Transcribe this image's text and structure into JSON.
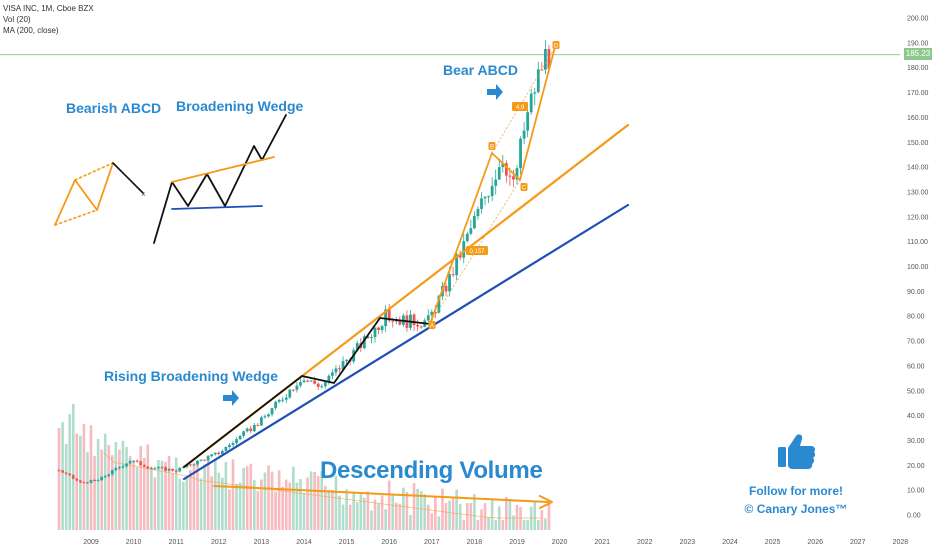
{
  "header": {
    "symbol": "VISA INC, 1M, Cboe BZX",
    "vol": "Vol (20)",
    "ma": "MA (200, close)"
  },
  "annotations": {
    "bearish_abcd": "Bearish ABCD",
    "broadening_wedge": "Broadening Wedge",
    "bear_abcd": "Bear ABCD",
    "rising_broadening_wedge": "Rising Broadening Wedge",
    "descending_volume": "Descending Volume",
    "follow_line1": "Follow for more!",
    "follow_line2": "© Canary Jones™"
  },
  "last_price_label": "185.23",
  "pattern_labels": [
    "A",
    "B",
    "C",
    "D",
    "0.157",
    "4.9"
  ],
  "colors": {
    "up": "#26a69a",
    "down": "#ef5350",
    "wedge_upper": "#f59a16",
    "wedge_lower": "#1f4fb5",
    "annotation": "#2a8ad0",
    "price_line": "#7ec87e"
  },
  "chart_data": {
    "type": "candlestick",
    "x_axis_years": [
      "2009",
      "2010",
      "2011",
      "2012",
      "2013",
      "2014",
      "2015",
      "2016",
      "2017",
      "2018",
      "2019",
      "2020",
      "2021",
      "2022",
      "2023",
      "2024",
      "2025",
      "2026",
      "2027",
      "2028"
    ],
    "y_ticks": [
      "200.00",
      "190.00",
      "180.00",
      "170.00",
      "160.00",
      "150.00",
      "140.00",
      "130.00",
      "120.00",
      "110.00",
      "100.00",
      "90.00",
      "80.00",
      "70.00",
      "60.00",
      "50.00",
      "40.00",
      "30.00",
      "20.00",
      "10.00",
      "0.00"
    ],
    "ylim": [
      0,
      200
    ],
    "scale": "log",
    "last_close": 185.23,
    "approx_close_path": [
      {
        "x": "2008-04",
        "y": 18
      },
      {
        "x": "2008-10",
        "y": 13
      },
      {
        "x": "2009-03",
        "y": 14
      },
      {
        "x": "2009-12",
        "y": 22
      },
      {
        "x": "2010-06",
        "y": 19
      },
      {
        "x": "2011-01",
        "y": 18
      },
      {
        "x": "2012-01",
        "y": 25
      },
      {
        "x": "2013-01",
        "y": 38
      },
      {
        "x": "2013-12",
        "y": 55
      },
      {
        "x": "2014-06",
        "y": 52
      },
      {
        "x": "2015-06",
        "y": 70
      },
      {
        "x": "2015-12",
        "y": 80
      },
      {
        "x": "2016-06",
        "y": 78
      },
      {
        "x": "2016-12",
        "y": 78
      },
      {
        "x": "2017-06",
        "y": 95
      },
      {
        "x": "2017-12",
        "y": 115
      },
      {
        "x": "2018-06",
        "y": 135
      },
      {
        "x": "2018-09",
        "y": 145
      },
      {
        "x": "2018-12",
        "y": 132
      },
      {
        "x": "2019-03",
        "y": 155
      },
      {
        "x": "2019-06",
        "y": 172
      },
      {
        "x": "2019-09",
        "y": 185
      }
    ]
  }
}
